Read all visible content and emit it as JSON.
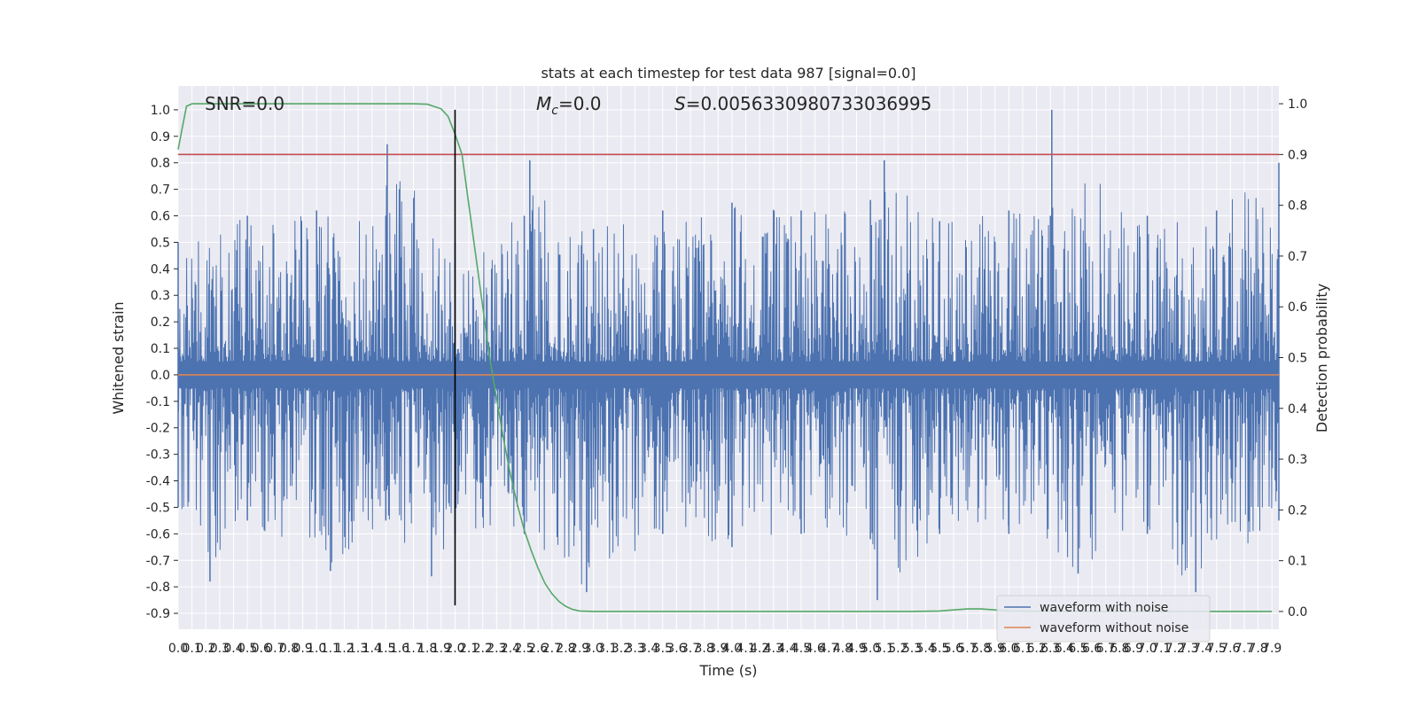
{
  "chart_data": {
    "type": "line",
    "title": "stats at each timestep for test data 987 [signal=0.0]",
    "xlabel": "Time (s)",
    "ylabel": "Whitened strain",
    "y2label": "Detection probability",
    "xlim": [
      0.0,
      7.95
    ],
    "ylim": [
      -0.96,
      1.09
    ],
    "y2lim": [
      -0.035,
      1.035
    ],
    "x_ticks": [
      0.0,
      0.1,
      0.2,
      0.3,
      0.4,
      0.5,
      0.6,
      0.7,
      0.8,
      0.9,
      1.0,
      1.1,
      1.2,
      1.3,
      1.4,
      1.5,
      1.6,
      1.7,
      1.8,
      1.9,
      2.0,
      2.1,
      2.2,
      2.3,
      2.4,
      2.5,
      2.6,
      2.7,
      2.8,
      2.9,
      3.0,
      3.1,
      3.2,
      3.3,
      3.4,
      3.5,
      3.6,
      3.7,
      3.8,
      3.9,
      4.0,
      4.1,
      4.2,
      4.3,
      4.4,
      4.5,
      4.6,
      4.7,
      4.8,
      4.9,
      5.0,
      5.1,
      5.2,
      5.3,
      5.4,
      5.5,
      5.6,
      5.7,
      5.8,
      5.9,
      6.0,
      6.1,
      6.2,
      6.3,
      6.4,
      6.5,
      6.6,
      6.7,
      6.8,
      6.9,
      7.0,
      7.1,
      7.2,
      7.3,
      7.4,
      7.5,
      7.6,
      7.7,
      7.8,
      7.9
    ],
    "y_ticks": [
      -0.9,
      -0.8,
      -0.7,
      -0.6,
      -0.5,
      -0.4,
      -0.3,
      -0.2,
      -0.1,
      0.0,
      0.1,
      0.2,
      0.3,
      0.4,
      0.5,
      0.6,
      0.7,
      0.8,
      0.9,
      1.0
    ],
    "y2_ticks": [
      0.0,
      0.1,
      0.2,
      0.3,
      0.4,
      0.5,
      0.6,
      0.7,
      0.8,
      0.9,
      1.0
    ],
    "grid": true,
    "legend_position": "bottom-right",
    "annotations": {
      "snr": "SNR=0.0",
      "mc_symbol": "M",
      "mc_sub": "c",
      "mc_value": "=0.0",
      "s_symbol": "S",
      "s_value": "=0.0056330980733036995"
    },
    "series": [
      {
        "name": "waveform with noise",
        "color": "#4c72b0",
        "description_only": "dense noise trace between about -0.85 and 1.0",
        "upper_envelope": {
          "x": [
            0.0,
            0.5,
            1.0,
            1.5,
            1.51,
            2.0,
            2.5,
            2.54,
            3.0,
            3.5,
            4.0,
            4.5,
            5.0,
            5.1,
            5.5,
            6.0,
            6.3,
            6.31,
            7.0,
            7.5,
            7.95
          ],
          "y": [
            0.5,
            0.6,
            0.62,
            0.6,
            0.87,
            0.5,
            0.6,
            0.81,
            0.55,
            0.62,
            0.65,
            0.62,
            0.66,
            0.81,
            0.58,
            0.62,
            0.6,
            1.0,
            0.6,
            0.62,
            0.8
          ]
        },
        "lower_envelope": {
          "x": [
            0.0,
            0.23,
            0.5,
            1.1,
            1.5,
            1.83,
            2.0,
            2.5,
            2.95,
            3.5,
            4.0,
            4.5,
            5.0,
            5.05,
            5.5,
            6.0,
            6.5,
            7.0,
            7.35,
            7.95
          ],
          "y": [
            -0.5,
            -0.78,
            -0.55,
            -0.74,
            -0.55,
            -0.76,
            -0.6,
            -0.6,
            -0.82,
            -0.6,
            -0.65,
            -0.6,
            -0.62,
            -0.85,
            -0.6,
            -0.6,
            -0.75,
            -0.6,
            -0.82,
            -0.55
          ]
        }
      },
      {
        "name": "waveform without noise",
        "color": "#dd8452",
        "x": [
          0.0,
          7.95
        ],
        "y": [
          0.0,
          0.0
        ]
      },
      {
        "name": "",
        "color": "#55a868",
        "axis": "y2",
        "x": [
          0.0,
          0.06,
          0.1,
          0.2,
          0.5,
          1.0,
          1.5,
          1.7,
          1.8,
          1.9,
          1.95,
          2.0,
          2.05,
          2.1,
          2.15,
          2.2,
          2.25,
          2.3,
          2.35,
          2.4,
          2.45,
          2.5,
          2.55,
          2.6,
          2.65,
          2.7,
          2.75,
          2.8,
          2.85,
          2.9,
          3.0,
          3.5,
          4.0,
          4.5,
          5.0,
          5.3,
          5.5,
          5.6,
          5.7,
          5.8,
          5.9,
          6.0,
          6.5,
          7.0,
          7.5,
          7.9
        ],
        "y": [
          0.91,
          0.995,
          1.0,
          1.0,
          1.0,
          1.0,
          1.0,
          1.0,
          0.999,
          0.99,
          0.975,
          0.94,
          0.9,
          0.8,
          0.7,
          0.6,
          0.5,
          0.42,
          0.34,
          0.27,
          0.21,
          0.16,
          0.12,
          0.085,
          0.055,
          0.035,
          0.02,
          0.01,
          0.004,
          0.001,
          0.0,
          0.0,
          0.0,
          0.0,
          0.0,
          0.0,
          0.001,
          0.003,
          0.005,
          0.005,
          0.003,
          0.001,
          0.0,
          0.0,
          0.0,
          0.0
        ]
      }
    ],
    "threshold": {
      "axis": "y2",
      "value": 0.9,
      "color": "#c44e52"
    },
    "marker_line": {
      "x": 2.0,
      "y_from": -0.87,
      "y_to": 1.0,
      "color": "#000000"
    }
  }
}
